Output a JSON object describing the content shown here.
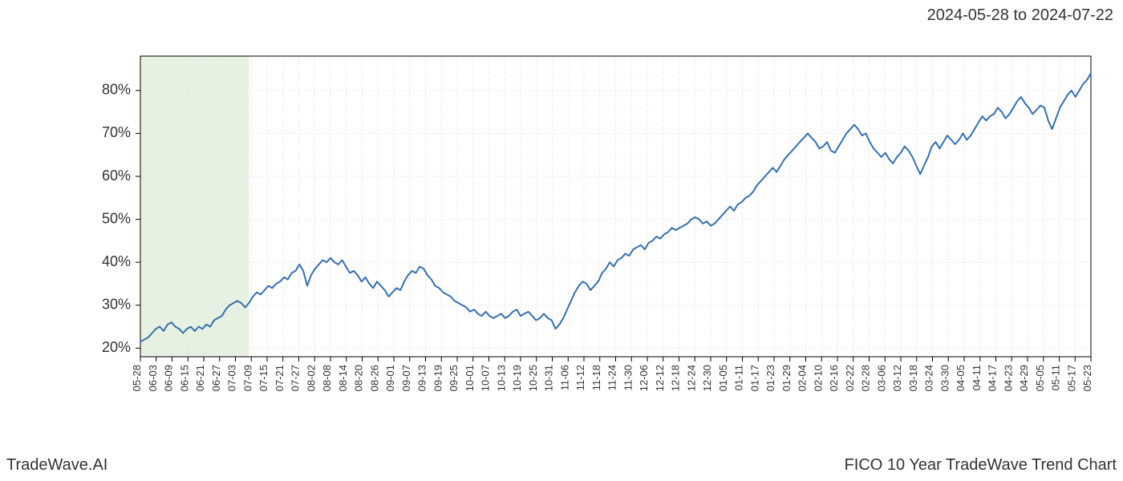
{
  "header": {
    "date_range": "2024-05-28 to 2024-07-22"
  },
  "footer": {
    "brand": "TradeWave.AI",
    "caption": "FICO 10 Year TradeWave Trend Chart"
  },
  "chart": {
    "type": "line",
    "background_color": "#ffffff",
    "plot_border_color": "#000000",
    "grid_color": "#e6e6e6",
    "line_color": "#3470b0",
    "line_width": 2,
    "highlight_fill": "#d7e8cd",
    "highlight_opacity": 0.6,
    "highlight_range_idx": [
      0,
      28
    ],
    "ylim": [
      18,
      88
    ],
    "yticks": [
      20,
      30,
      40,
      50,
      60,
      70,
      80
    ],
    "ytick_labels": [
      "20%",
      "30%",
      "40%",
      "50%",
      "60%",
      "70%",
      "80%"
    ],
    "ytick_fontsize": 18,
    "xtick_fontsize": 13,
    "xtick_labels": [
      "05-28",
      "06-03",
      "06-09",
      "06-15",
      "06-21",
      "06-27",
      "07-03",
      "07-09",
      "07-15",
      "07-21",
      "07-27",
      "08-02",
      "08-08",
      "08-14",
      "08-20",
      "08-26",
      "09-01",
      "09-07",
      "09-13",
      "09-19",
      "09-25",
      "10-01",
      "10-07",
      "10-13",
      "10-19",
      "10-25",
      "10-31",
      "11-06",
      "11-12",
      "11-18",
      "11-24",
      "11-30",
      "12-06",
      "12-12",
      "12-18",
      "12-24",
      "12-30",
      "01-05",
      "01-11",
      "01-17",
      "01-23",
      "01-29",
      "02-04",
      "02-10",
      "02-16",
      "02-22",
      "02-28",
      "03-06",
      "03-12",
      "03-18",
      "03-24",
      "03-30",
      "04-05",
      "04-11",
      "04-17",
      "04-23",
      "04-29",
      "05-05",
      "05-11",
      "05-17",
      "05-23"
    ],
    "series": [
      21.5,
      22.0,
      22.5,
      23.5,
      24.5,
      25.0,
      24.0,
      25.5,
      26.0,
      25.0,
      24.5,
      23.5,
      24.5,
      25.0,
      24.0,
      25.0,
      24.5,
      25.5,
      25.0,
      26.5,
      27.0,
      27.5,
      29.0,
      30.0,
      30.5,
      31.0,
      30.5,
      29.5,
      30.5,
      32.0,
      33.0,
      32.5,
      33.5,
      34.5,
      34.0,
      35.0,
      35.5,
      36.5,
      36.0,
      37.5,
      38.0,
      39.5,
      38.0,
      34.5,
      37.0,
      38.5,
      39.5,
      40.5,
      40.0,
      41.0,
      40.0,
      39.5,
      40.5,
      39.0,
      37.5,
      38.0,
      37.0,
      35.5,
      36.5,
      35.0,
      34.0,
      35.5,
      34.5,
      33.5,
      32.0,
      33.0,
      34.0,
      33.5,
      35.5,
      37.0,
      38.0,
      37.5,
      39.0,
      38.5,
      37.0,
      36.0,
      34.5,
      34.0,
      33.0,
      32.5,
      32.0,
      31.0,
      30.5,
      30.0,
      29.5,
      28.5,
      29.0,
      28.0,
      27.5,
      28.5,
      27.5,
      27.0,
      27.5,
      28.0,
      27.0,
      27.5,
      28.5,
      29.0,
      27.5,
      28.0,
      28.5,
      27.5,
      26.5,
      27.0,
      28.0,
      27.0,
      26.5,
      24.5,
      25.5,
      27.0,
      29.0,
      31.0,
      33.0,
      34.5,
      35.5,
      35.0,
      33.5,
      34.5,
      35.5,
      37.5,
      38.5,
      40.0,
      39.0,
      40.5,
      41.0,
      42.0,
      41.5,
      43.0,
      43.5,
      44.0,
      43.0,
      44.5,
      45.0,
      46.0,
      45.5,
      46.5,
      47.0,
      48.0,
      47.5,
      48.0,
      48.5,
      49.0,
      50.0,
      50.5,
      50.0,
      49.0,
      49.5,
      48.5,
      49.0,
      50.0,
      51.0,
      52.0,
      53.0,
      52.0,
      53.5,
      54.0,
      55.0,
      55.5,
      56.5,
      58.0,
      59.0,
      60.0,
      61.0,
      62.0,
      61.0,
      62.5,
      64.0,
      65.0,
      66.0,
      67.0,
      68.0,
      69.0,
      70.0,
      69.0,
      68.0,
      66.5,
      67.0,
      68.0,
      66.0,
      65.5,
      67.0,
      68.5,
      70.0,
      71.0,
      72.0,
      71.0,
      69.5,
      70.0,
      68.0,
      66.5,
      65.5,
      64.5,
      65.5,
      64.0,
      63.0,
      64.5,
      65.5,
      67.0,
      66.0,
      64.5,
      62.5,
      60.5,
      62.5,
      64.5,
      67.0,
      68.0,
      66.5,
      68.0,
      69.5,
      68.5,
      67.5,
      68.5,
      70.0,
      68.5,
      69.5,
      71.0,
      72.5,
      74.0,
      73.0,
      74.0,
      74.5,
      76.0,
      75.0,
      73.5,
      74.5,
      76.0,
      77.5,
      78.5,
      77.0,
      76.0,
      74.5,
      75.5,
      76.5,
      76.0,
      73.0,
      71.0,
      73.5,
      76.0,
      77.5,
      79.0,
      80.0,
      78.5,
      80.0,
      81.5,
      82.5,
      84.0
    ]
  }
}
